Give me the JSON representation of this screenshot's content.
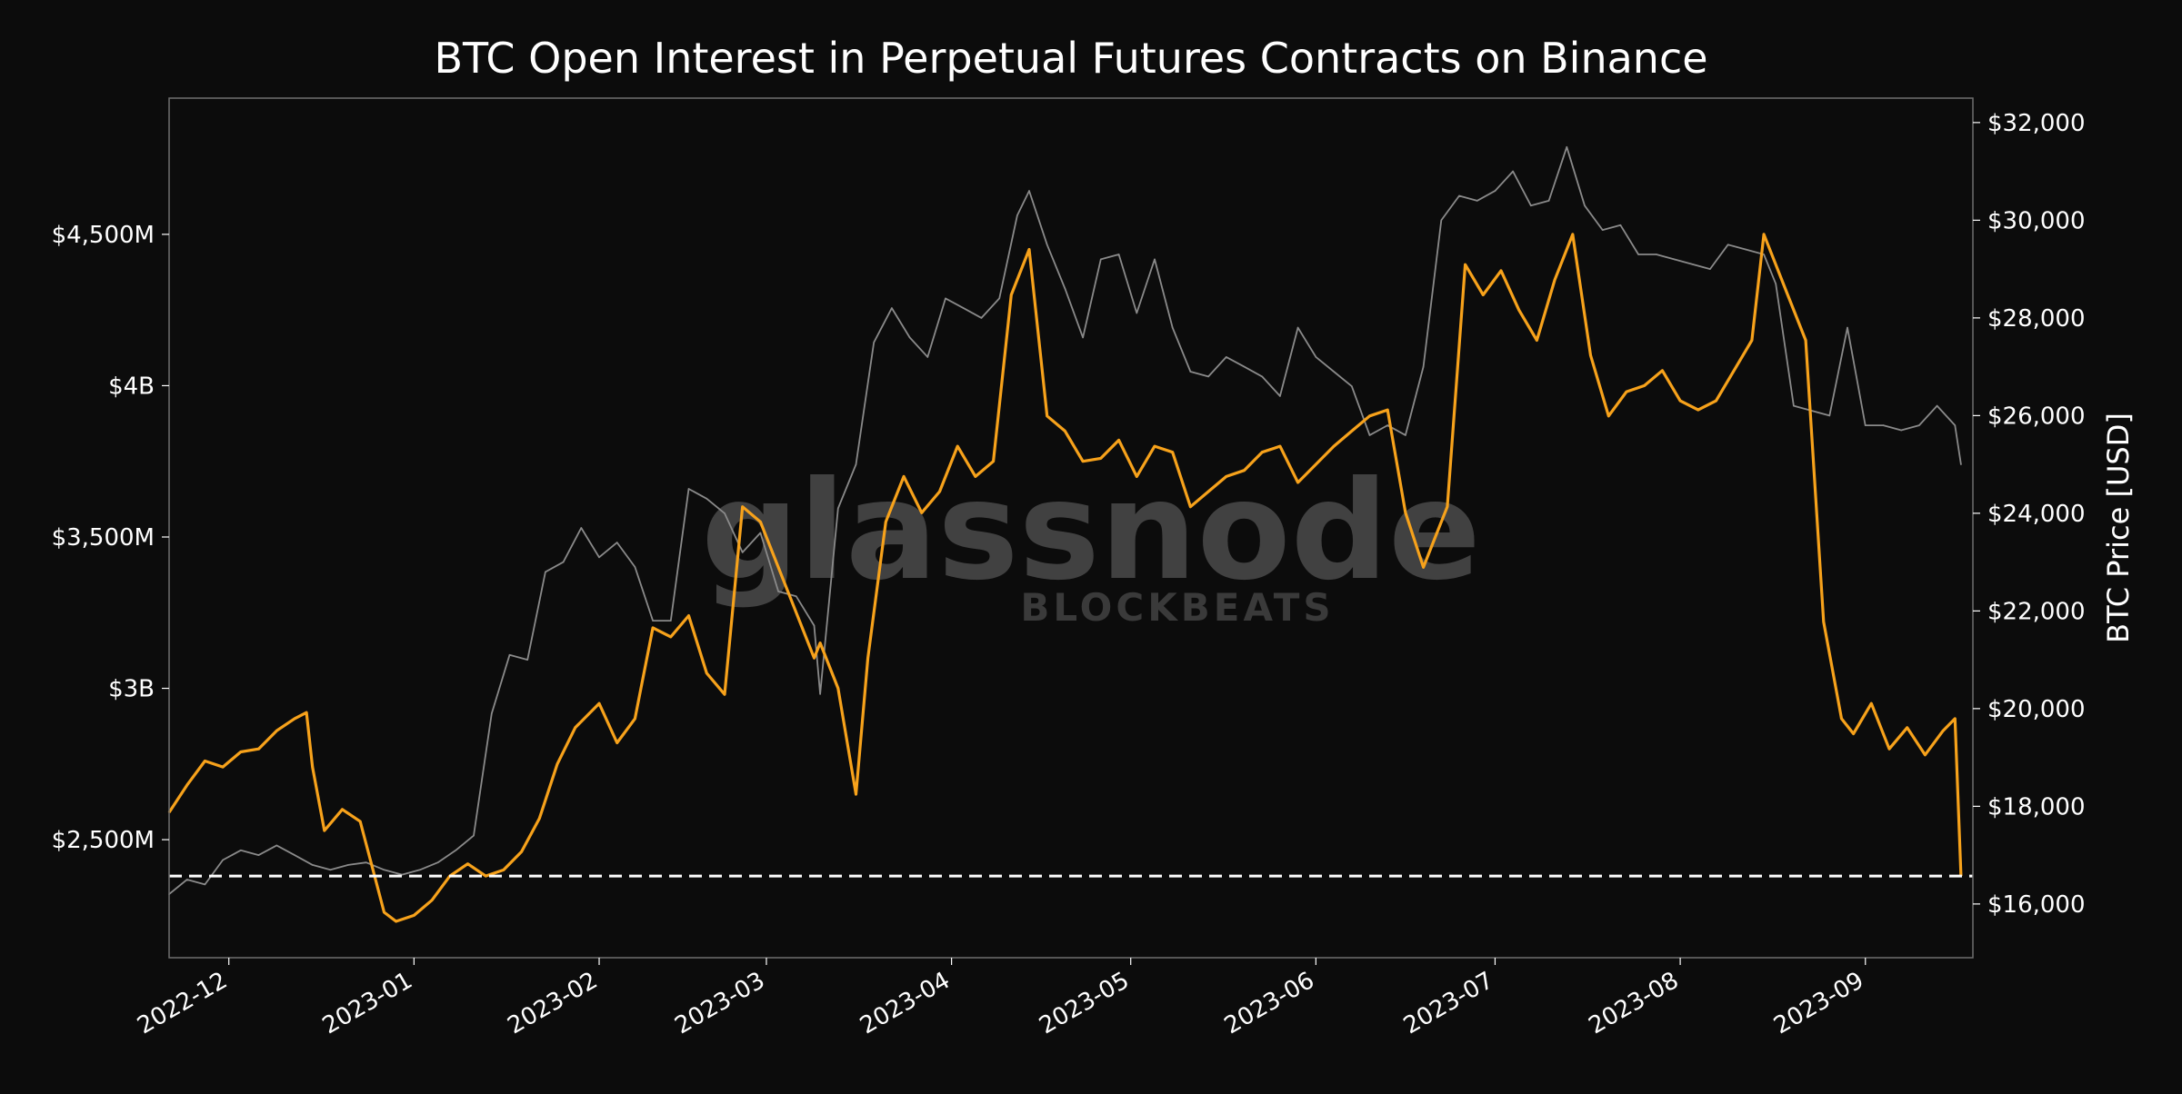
{
  "chart_data": {
    "type": "line",
    "title": "BTC Open Interest in Perpetual Futures Contracts on Binance",
    "xlabel": "",
    "ylabel": "",
    "y2label": "BTC Price [USD]",
    "x_ticks": [
      "2022-12",
      "2023-01",
      "2023-02",
      "2023-03",
      "2023-04",
      "2023-05",
      "2023-06",
      "2023-07",
      "2023-08",
      "2023-09"
    ],
    "y_ticks": [
      "$2,500M",
      "$3B",
      "$3,500M",
      "$4B",
      "$4,500M"
    ],
    "y2_ticks": [
      "$16,000",
      "$18,000",
      "$20,000",
      "$22,000",
      "$24,000",
      "$26,000",
      "$28,000",
      "$30,000",
      "$32,000"
    ],
    "ylim": [
      2110,
      4950
    ],
    "y2lim": [
      14900,
      32500
    ],
    "xlim": [
      "2022-11-21",
      "2023-09-19"
    ],
    "grid": false,
    "reference_line": {
      "axis": "y",
      "value": 2380,
      "style": "dashed",
      "color": "#ffffff"
    },
    "watermark": {
      "main": "glassnode",
      "sub": "BLOCKBEATS"
    },
    "colors": {
      "background": "#0c0c0c",
      "open_interest": "#f7a21b",
      "price": "#8a8a8a",
      "frame": "#6e6e6e"
    },
    "series": [
      {
        "axis": "y",
        "color": "#f7a21b",
        "x": [
          "2022-11-21",
          "2022-11-24",
          "2022-11-27",
          "2022-11-30",
          "2022-12-03",
          "2022-12-06",
          "2022-12-09",
          "2022-12-12",
          "2022-12-14",
          "2022-12-15",
          "2022-12-17",
          "2022-12-20",
          "2022-12-23",
          "2022-12-25",
          "2022-12-27",
          "2022-12-29",
          "2023-01-01",
          "2023-01-04",
          "2023-01-07",
          "2023-01-10",
          "2023-01-13",
          "2023-01-16",
          "2023-01-19",
          "2023-01-22",
          "2023-01-25",
          "2023-01-28",
          "2023-02-01",
          "2023-02-04",
          "2023-02-07",
          "2023-02-10",
          "2023-02-13",
          "2023-02-16",
          "2023-02-19",
          "2023-02-22",
          "2023-02-25",
          "2023-02-28",
          "2023-03-03",
          "2023-03-06",
          "2023-03-09",
          "2023-03-10",
          "2023-03-13",
          "2023-03-16",
          "2023-03-18",
          "2023-03-21",
          "2023-03-24",
          "2023-03-27",
          "2023-03-30",
          "2023-04-02",
          "2023-04-05",
          "2023-04-08",
          "2023-04-11",
          "2023-04-14",
          "2023-04-17",
          "2023-04-20",
          "2023-04-23",
          "2023-04-26",
          "2023-04-29",
          "2023-05-02",
          "2023-05-05",
          "2023-05-08",
          "2023-05-11",
          "2023-05-14",
          "2023-05-17",
          "2023-05-20",
          "2023-05-23",
          "2023-05-26",
          "2023-05-29",
          "2023-06-01",
          "2023-06-04",
          "2023-06-07",
          "2023-06-10",
          "2023-06-13",
          "2023-06-16",
          "2023-06-19",
          "2023-06-21",
          "2023-06-23",
          "2023-06-26",
          "2023-06-29",
          "2023-07-02",
          "2023-07-05",
          "2023-07-08",
          "2023-07-11",
          "2023-07-14",
          "2023-07-17",
          "2023-07-20",
          "2023-07-23",
          "2023-07-26",
          "2023-07-29",
          "2023-08-01",
          "2023-08-04",
          "2023-08-07",
          "2023-08-10",
          "2023-08-13",
          "2023-08-15",
          "2023-08-17",
          "2023-08-19",
          "2023-08-22",
          "2023-08-25",
          "2023-08-28",
          "2023-08-30",
          "2023-09-02",
          "2023-09-05",
          "2023-09-08",
          "2023-09-11",
          "2023-09-14",
          "2023-09-16",
          "2023-09-17"
        ],
        "values": [
          2590,
          2680,
          2760,
          2740,
          2790,
          2800,
          2860,
          2900,
          2920,
          2740,
          2530,
          2600,
          2560,
          2410,
          2260,
          2230,
          2250,
          2300,
          2380,
          2420,
          2380,
          2400,
          2460,
          2570,
          2750,
          2870,
          2950,
          2820,
          2900,
          3200,
          3170,
          3240,
          3050,
          2980,
          3600,
          3550,
          3400,
          3250,
          3100,
          3150,
          3000,
          2650,
          3100,
          3550,
          3700,
          3580,
          3650,
          3800,
          3700,
          3750,
          4300,
          4450,
          3900,
          3850,
          3750,
          3760,
          3820,
          3700,
          3800,
          3780,
          3600,
          3650,
          3700,
          3720,
          3780,
          3800,
          3680,
          3740,
          3800,
          3850,
          3900,
          3920,
          3580,
          3400,
          3500,
          3600,
          4400,
          4300,
          4380,
          4250,
          4150,
          4350,
          4500,
          4100,
          3900,
          3980,
          4000,
          4050,
          3950,
          3920,
          3950,
          4050,
          4150,
          4500,
          4400,
          4300,
          4150,
          3220,
          2900,
          2850,
          2950,
          2800,
          2870,
          2780,
          2860,
          2900,
          2380
        ]
      },
      {
        "axis": "y2",
        "color": "#8a8a8a",
        "x": [
          "2022-11-21",
          "2022-11-24",
          "2022-11-27",
          "2022-11-30",
          "2022-12-03",
          "2022-12-06",
          "2022-12-09",
          "2022-12-12",
          "2022-12-15",
          "2022-12-18",
          "2022-12-21",
          "2022-12-24",
          "2022-12-27",
          "2022-12-30",
          "2023-01-02",
          "2023-01-05",
          "2023-01-08",
          "2023-01-11",
          "2023-01-14",
          "2023-01-17",
          "2023-01-20",
          "2023-01-23",
          "2023-01-26",
          "2023-01-29",
          "2023-02-01",
          "2023-02-04",
          "2023-02-07",
          "2023-02-10",
          "2023-02-13",
          "2023-02-16",
          "2023-02-19",
          "2023-02-22",
          "2023-02-25",
          "2023-02-28",
          "2023-03-03",
          "2023-03-06",
          "2023-03-09",
          "2023-03-10",
          "2023-03-13",
          "2023-03-16",
          "2023-03-19",
          "2023-03-22",
          "2023-03-25",
          "2023-03-28",
          "2023-03-31",
          "2023-04-03",
          "2023-04-06",
          "2023-04-09",
          "2023-04-12",
          "2023-04-14",
          "2023-04-17",
          "2023-04-20",
          "2023-04-23",
          "2023-04-26",
          "2023-04-29",
          "2023-05-02",
          "2023-05-05",
          "2023-05-08",
          "2023-05-11",
          "2023-05-14",
          "2023-05-17",
          "2023-05-20",
          "2023-05-23",
          "2023-05-26",
          "2023-05-29",
          "2023-06-01",
          "2023-06-04",
          "2023-06-07",
          "2023-06-10",
          "2023-06-13",
          "2023-06-16",
          "2023-06-19",
          "2023-06-22",
          "2023-06-25",
          "2023-06-28",
          "2023-07-01",
          "2023-07-04",
          "2023-07-07",
          "2023-07-10",
          "2023-07-13",
          "2023-07-16",
          "2023-07-19",
          "2023-07-22",
          "2023-07-25",
          "2023-07-28",
          "2023-07-31",
          "2023-08-03",
          "2023-08-06",
          "2023-08-09",
          "2023-08-12",
          "2023-08-15",
          "2023-08-17",
          "2023-08-20",
          "2023-08-23",
          "2023-08-26",
          "2023-08-29",
          "2023-09-01",
          "2023-09-04",
          "2023-09-07",
          "2023-09-10",
          "2023-09-13",
          "2023-09-16",
          "2023-09-17"
        ],
        "values": [
          16200,
          16500,
          16400,
          16900,
          17100,
          17000,
          17200,
          17000,
          16800,
          16700,
          16800,
          16850,
          16700,
          16600,
          16700,
          16850,
          17100,
          17400,
          19900,
          21100,
          21000,
          22800,
          23000,
          23700,
          23100,
          23400,
          22900,
          21800,
          21800,
          24500,
          24300,
          24000,
          23200,
          23600,
          22400,
          22300,
          21700,
          20300,
          24100,
          25000,
          27500,
          28200,
          27600,
          27200,
          28400,
          28200,
          28000,
          28400,
          30100,
          30600,
          29500,
          28600,
          27600,
          29200,
          29300,
          28100,
          29200,
          27800,
          26900,
          26800,
          27200,
          27000,
          26800,
          26400,
          27800,
          27200,
          26900,
          26600,
          25600,
          25800,
          25600,
          27000,
          30000,
          30500,
          30400,
          30600,
          31000,
          30300,
          30400,
          31500,
          30300,
          29800,
          29900,
          29300,
          29300,
          29200,
          29100,
          29000,
          29500,
          29400,
          29300,
          28700,
          26200,
          26100,
          26000,
          27800,
          25800,
          25800,
          25700,
          25800,
          26200,
          25800,
          25000
        ]
      }
    ]
  }
}
